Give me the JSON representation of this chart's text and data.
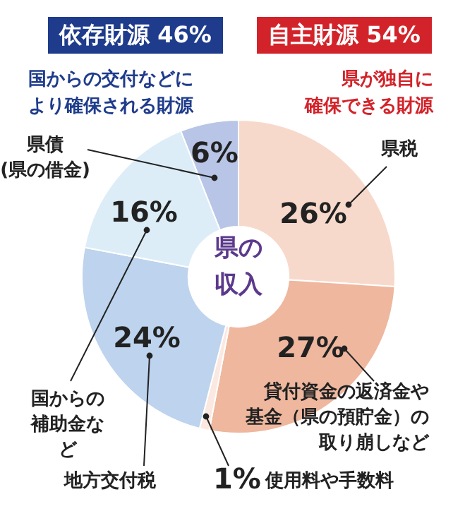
{
  "chart_data": {
    "type": "donut",
    "title": "県の収入",
    "categories": [
      "県税",
      "貸付資金の返済金や基金（県の預貯金）の取り崩しなど",
      "使用料や手数料",
      "地方交付税",
      "国からの補助金など",
      "県債(県の借金)"
    ],
    "values": [
      26,
      27,
      1,
      24,
      16,
      6
    ],
    "colors": [
      "#f7d9cb",
      "#eeb79e",
      "#fbe8e0",
      "#bdd3ee",
      "#dcedf8",
      "#b8c5e6"
    ],
    "value_labels": [
      "26%",
      "27%",
      "1%",
      "24%",
      "16%",
      "6%"
    ],
    "annotations": [
      "依存財源 46%",
      "国からの交付などにより確保される財源",
      "自主財源 54%",
      "県が独自に確保できる財源"
    ],
    "legend": false
  }
}
